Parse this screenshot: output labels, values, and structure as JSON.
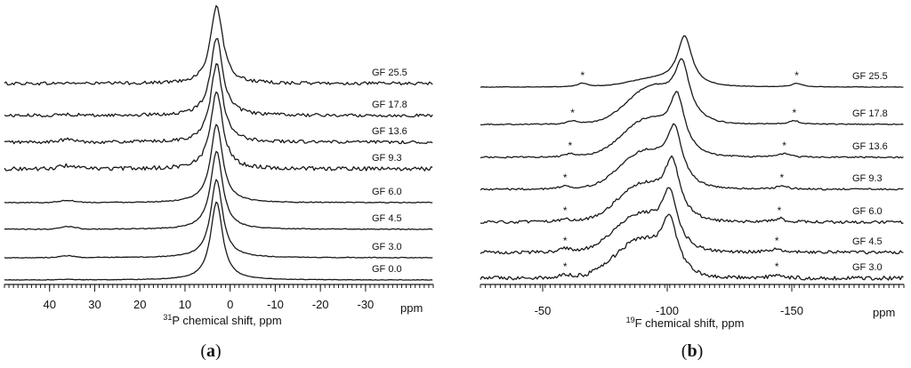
{
  "chart_data": [
    {
      "type": "line",
      "panel_label": "(a)",
      "bold_letter": "a",
      "xlabel_nucleus": "31",
      "xlabel_rest": "P chemical shift, ppm",
      "unit_label": "ppm",
      "xlim": [
        50,
        -45
      ],
      "x_reversed": true,
      "ticks": [
        40,
        30,
        20,
        10,
        0,
        -10,
        -20,
        -30
      ],
      "tick_labels": [
        "40",
        "30",
        "20",
        "10",
        "0",
        "-10",
        "-20",
        "-30"
      ],
      "peak_ppm": 3,
      "series": [
        {
          "name": "GF 25.5",
          "noise": 0.9,
          "side_bump": 0.2
        },
        {
          "name": "GF 17.8",
          "noise": 0.9,
          "side_bump": 0.6
        },
        {
          "name": "GF 13.6",
          "noise": 0.9,
          "side_bump": 1.4
        },
        {
          "name": "GF 9.3",
          "noise": 1.1,
          "side_bump": 1.8
        },
        {
          "name": "GF 6.0",
          "noise": 0.25,
          "side_bump": 1.2
        },
        {
          "name": "GF 4.5",
          "noise": 0.25,
          "side_bump": 1.5
        },
        {
          "name": "GF 3.0",
          "noise": 0.2,
          "side_bump": 1.0
        },
        {
          "name": "GF 0.0",
          "noise": 0.15,
          "side_bump": 0.3
        }
      ]
    },
    {
      "type": "line",
      "panel_label": "(b)",
      "bold_letter": "b",
      "xlabel_nucleus": "19",
      "xlabel_rest": "F chemical shift, ppm",
      "unit_label": "ppm",
      "xlim": [
        -25,
        -195
      ],
      "x_reversed": true,
      "ticks": [
        -50,
        -100,
        -150
      ],
      "tick_labels": [
        "-50",
        "-100",
        "-150"
      ],
      "sideband_marker": "*",
      "series": [
        {
          "name": "GF 25.5",
          "peak_ppm": -107,
          "noise": 0.15,
          "sidebands": [
            -66,
            -152
          ]
        },
        {
          "name": "GF 17.8",
          "peak_ppm": -106,
          "noise": 0.3,
          "sidebands": [
            -62,
            -151
          ]
        },
        {
          "name": "GF 13.6",
          "peak_ppm": -104,
          "noise": 0.4,
          "sidebands": [
            -61,
            -147
          ]
        },
        {
          "name": "GF 9.3",
          "peak_ppm": -103,
          "noise": 0.5,
          "sidebands": [
            -59,
            -146
          ]
        },
        {
          "name": "GF 6.0",
          "peak_ppm": -102,
          "noise": 0.8,
          "sidebands": [
            -59,
            -145
          ]
        },
        {
          "name": "GF 4.5",
          "peak_ppm": -101,
          "noise": 0.9,
          "sidebands": [
            -59,
            -144
          ]
        },
        {
          "name": "GF 3.0",
          "peak_ppm": -101,
          "noise": 1.1,
          "sidebands": [
            -59,
            -144
          ]
        }
      ]
    }
  ]
}
